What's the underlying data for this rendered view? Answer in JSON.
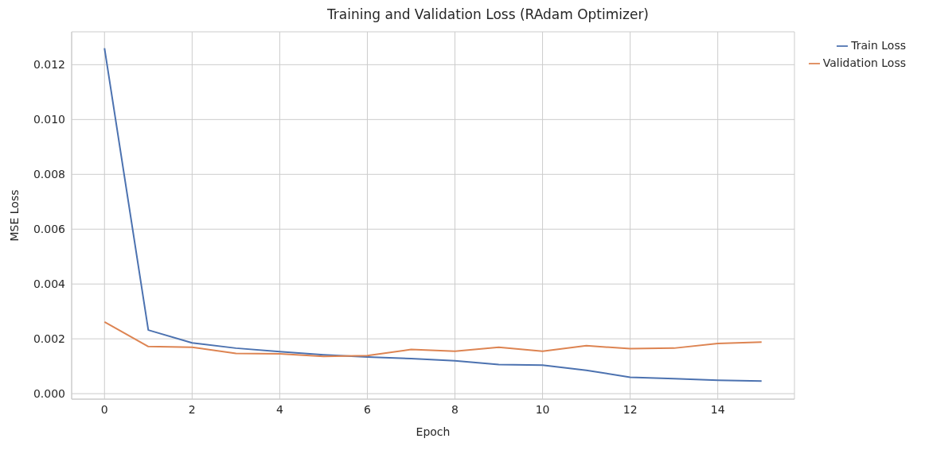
{
  "chart_data": {
    "type": "line",
    "title": "Training and Validation Loss (RAdam Optimizer)",
    "xlabel": "Epoch",
    "ylabel": "MSE Loss",
    "x": [
      0,
      1,
      2,
      3,
      4,
      5,
      6,
      7,
      8,
      9,
      10,
      11,
      12,
      13,
      14,
      15
    ],
    "series": [
      {
        "name": "Train Loss",
        "color": "#4c72b0",
        "values": [
          0.0126,
          0.00232,
          0.00185,
          0.00166,
          0.00153,
          0.00142,
          0.00134,
          0.00128,
          0.0012,
          0.00106,
          0.00104,
          0.00085,
          0.0006,
          0.00055,
          0.00049,
          0.00046
        ]
      },
      {
        "name": "Validation Loss",
        "color": "#dd8452",
        "values": [
          0.00262,
          0.00172,
          0.00169,
          0.00147,
          0.00145,
          0.00136,
          0.00139,
          0.00161,
          0.00155,
          0.00169,
          0.00155,
          0.00175,
          0.00164,
          0.00166,
          0.00183,
          0.00188
        ]
      }
    ],
    "xlim": [
      -0.75,
      15.75
    ],
    "xticks": [
      0,
      2,
      4,
      6,
      8,
      10,
      12,
      14
    ],
    "ylim": [
      -0.0002,
      0.0132
    ],
    "yticks": [
      {
        "value": 0,
        "label": "0.000"
      },
      {
        "value": 0.002,
        "label": "0.002"
      },
      {
        "value": 0.004,
        "label": "0.004"
      },
      {
        "value": 0.006,
        "label": "0.006"
      },
      {
        "value": 0.008,
        "label": "0.008"
      },
      {
        "value": 0.01,
        "label": "0.010"
      },
      {
        "value": 0.012,
        "label": "0.012"
      }
    ],
    "grid": true,
    "legend": "top right",
    "marker": "none",
    "line_style": "solid"
  }
}
